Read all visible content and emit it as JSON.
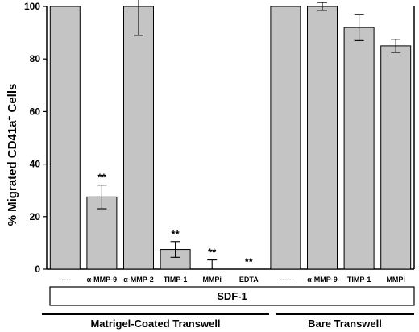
{
  "chart_data": {
    "type": "bar",
    "ylabel_main": "% Migrated CD41a",
    "ylabel_sup": "+",
    "ylabel_tail": " Cells",
    "ylim": [
      0,
      100
    ],
    "yticks": [
      "0",
      "20",
      "40",
      "60",
      "80",
      "100"
    ],
    "ytick_values": [
      0,
      20,
      40,
      60,
      80,
      100
    ],
    "grid": false,
    "bar_color": "#c4c4c4",
    "categories": [
      "-----",
      "α-MMP-9",
      "α-MMP-2",
      "TIMP-1",
      "MMPi",
      "EDTA",
      "-----",
      "α-MMP-9",
      "TIMP-1",
      "MMPi"
    ],
    "values": [
      100,
      27.5,
      100,
      7.5,
      0,
      0,
      100,
      100,
      92,
      85
    ],
    "errors": [
      0,
      4.5,
      11,
      3,
      3.5,
      0,
      0,
      1.5,
      5,
      2.5
    ],
    "significance": [
      "",
      "**",
      "",
      "**",
      "**",
      "**",
      "",
      "",
      "",
      ""
    ],
    "treatment_box": "SDF-1",
    "groups": [
      {
        "label": "Matrigel-Coated Transwell"
      },
      {
        "label": "Bare Transwell"
      }
    ]
  }
}
